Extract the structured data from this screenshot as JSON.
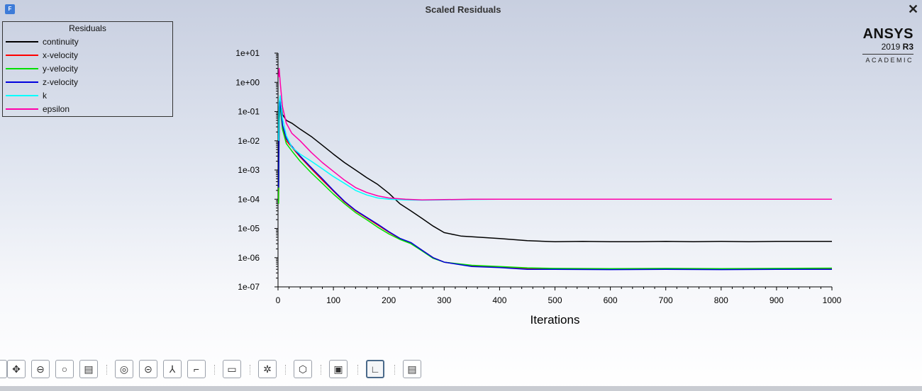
{
  "window": {
    "title": "Scaled Residuals",
    "close_symbol": "✕",
    "app_icon_text": "F"
  },
  "brand": {
    "name": "ANSYS",
    "version": "2019",
    "release": "R3",
    "edition": "ACADEMIC"
  },
  "legend": {
    "title": "Residuals"
  },
  "chart_data": {
    "type": "line",
    "title": "",
    "xlabel": "Iterations",
    "ylabel": "",
    "xlim": [
      0,
      1000
    ],
    "ylim": [
      1e-07,
      10
    ],
    "yscale": "log",
    "xticks": [
      "0",
      "100",
      "200",
      "300",
      "400",
      "500",
      "600",
      "700",
      "800",
      "900",
      "1000"
    ],
    "yticks": [
      "1e+01",
      "1e+00",
      "1e-01",
      "1e-02",
      "1e-03",
      "1e-04",
      "1e-05",
      "1e-06",
      "1e-07"
    ],
    "legend_position": "top-left",
    "series": [
      {
        "name": "continuity",
        "color": "#000000",
        "x": [
          1,
          2,
          4,
          8,
          15,
          25,
          40,
          60,
          80,
          100,
          120,
          140,
          160,
          180,
          200,
          220,
          240,
          260,
          280,
          300,
          330,
          350,
          400,
          450,
          500,
          550,
          600,
          650,
          700,
          750,
          800,
          850,
          900,
          950,
          1000
        ],
        "y": [
          0.0003,
          0.15,
          0.3,
          0.08,
          0.05,
          0.04,
          0.025,
          0.014,
          0.007,
          0.0035,
          0.0018,
          0.001,
          0.00055,
          0.00032,
          0.00016,
          7e-05,
          4e-05,
          2.2e-05,
          1.2e-05,
          7.2e-06,
          5.5e-06,
          5.2e-06,
          4.5e-06,
          3.8e-06,
          3.5e-06,
          3.6e-06,
          3.5e-06,
          3.5e-06,
          3.6e-06,
          3.5e-06,
          3.6e-06,
          3.5e-06,
          3.6e-06,
          3.6e-06,
          3.6e-06
        ]
      },
      {
        "name": "x-velocity",
        "color": "#ff0000",
        "x": [
          1,
          2,
          4,
          8,
          15,
          25,
          40,
          60,
          80,
          100,
          120,
          140,
          160,
          180,
          200,
          220,
          240,
          260,
          280,
          300,
          350,
          400,
          450,
          500,
          600,
          700,
          800,
          900,
          1000
        ],
        "y": [
          7e-05,
          0.05,
          0.2,
          0.03,
          0.01,
          0.006,
          0.0028,
          0.0011,
          0.00045,
          0.00019,
          8e-05,
          4e-05,
          2.3e-05,
          1.3e-05,
          7.5e-06,
          4.5e-06,
          3.2e-06,
          1.8e-06,
          1e-06,
          7e-07,
          5.2e-07,
          4.8e-07,
          4.2e-07,
          4.1e-07,
          4e-07,
          4.1e-07,
          4e-07,
          4.1e-07,
          4.2e-07
        ]
      },
      {
        "name": "y-velocity",
        "color": "#00e000",
        "x": [
          1,
          2,
          4,
          8,
          15,
          25,
          40,
          60,
          80,
          100,
          120,
          140,
          160,
          180,
          200,
          220,
          240,
          260,
          280,
          300,
          350,
          400,
          450,
          500,
          600,
          700,
          800,
          900,
          1000
        ],
        "y": [
          7e-05,
          0.04,
          0.18,
          0.025,
          0.008,
          0.0045,
          0.002,
          0.0008,
          0.00035,
          0.00015,
          7e-05,
          3.5e-05,
          2e-05,
          1.1e-05,
          6.5e-06,
          4.2e-06,
          3e-06,
          1.7e-06,
          9.5e-07,
          7e-07,
          5.5e-07,
          5e-07,
          4.5e-07,
          4.3e-07,
          4.2e-07,
          4.3e-07,
          4.2e-07,
          4.3e-07,
          4.4e-07
        ]
      },
      {
        "name": "z-velocity",
        "color": "#0000dd",
        "x": [
          1,
          2,
          4,
          8,
          15,
          25,
          40,
          60,
          80,
          100,
          120,
          140,
          160,
          180,
          200,
          220,
          240,
          260,
          280,
          300,
          350,
          400,
          450,
          500,
          600,
          700,
          800,
          900,
          1000
        ],
        "y": [
          0.00025,
          0.06,
          0.25,
          0.035,
          0.012,
          0.0065,
          0.003,
          0.0012,
          0.0005,
          0.0002,
          8.5e-05,
          4.2e-05,
          2.4e-05,
          1.4e-05,
          7.8e-06,
          4.6e-06,
          3.3e-06,
          1.8e-06,
          1e-06,
          7e-07,
          5e-07,
          4.6e-07,
          4e-07,
          4e-07,
          3.9e-07,
          4e-07,
          3.9e-07,
          4e-07,
          4e-07
        ]
      },
      {
        "name": "k",
        "color": "#00ffff",
        "x": [
          1,
          2,
          4,
          8,
          15,
          25,
          40,
          60,
          80,
          100,
          120,
          140,
          160,
          180,
          200,
          230,
          260,
          300,
          350,
          400,
          500,
          600,
          700,
          800,
          900,
          1000
        ],
        "y": [
          0.01,
          0.2,
          0.35,
          0.06,
          0.015,
          0.006,
          0.0035,
          0.002,
          0.0011,
          0.0006,
          0.00035,
          0.0002,
          0.00014,
          0.00011,
          0.0001,
          9.5e-05,
          9.3e-05,
          9.5e-05,
          9.8e-05,
          0.0001,
          0.0001,
          0.0001,
          0.0001,
          0.0001,
          0.0001,
          0.0001
        ]
      },
      {
        "name": "epsilon",
        "color": "#ff00aa",
        "x": [
          1,
          2,
          4,
          8,
          15,
          25,
          40,
          60,
          80,
          100,
          120,
          140,
          160,
          180,
          200,
          230,
          260,
          300,
          350,
          400,
          500,
          600,
          700,
          800,
          900,
          1000
        ],
        "y": [
          1.5,
          3,
          1,
          0.15,
          0.04,
          0.018,
          0.01,
          0.004,
          0.0018,
          0.0009,
          0.00045,
          0.00025,
          0.00017,
          0.00013,
          0.00011,
          0.0001,
          9.5e-05,
          9.7e-05,
          0.0001,
          0.0001,
          0.0001,
          0.0001,
          0.0001,
          0.0001,
          0.0001,
          0.0001
        ]
      }
    ]
  },
  "toolbar": {
    "buttons": [
      {
        "id": "select",
        "icon": "pointer-icon",
        "glyph": "▏"
      },
      {
        "id": "pan",
        "icon": "pan-icon",
        "glyph": "✥"
      },
      {
        "id": "zoom-in-out",
        "icon": "zoom-in-out-icon",
        "glyph": "⊖"
      },
      {
        "id": "zoom",
        "icon": "zoom-icon",
        "glyph": "○"
      },
      {
        "id": "zoom-box",
        "icon": "zoom-to-area-icon",
        "glyph": "▤"
      },
      {
        "id": "fit",
        "icon": "fit-to-window-icon",
        "glyph": "◎"
      },
      {
        "id": "zoom-out",
        "icon": "zoom-out-icon",
        "glyph": "⊝"
      },
      {
        "id": "axes",
        "icon": "axes-icon",
        "glyph": "⅄"
      },
      {
        "id": "view",
        "icon": "view-icon",
        "glyph": "⌐"
      },
      {
        "id": "probe",
        "icon": "probe-icon",
        "glyph": "▭"
      },
      {
        "id": "lights",
        "icon": "lights-icon",
        "glyph": "✲"
      },
      {
        "id": "3d",
        "icon": "cube-icon",
        "glyph": "⬡"
      },
      {
        "id": "box",
        "icon": "box-icon",
        "glyph": "▣"
      },
      {
        "id": "xy",
        "icon": "xy-plot-icon",
        "glyph": "∟"
      },
      {
        "id": "report",
        "icon": "report-icon",
        "glyph": "▤"
      }
    ]
  }
}
